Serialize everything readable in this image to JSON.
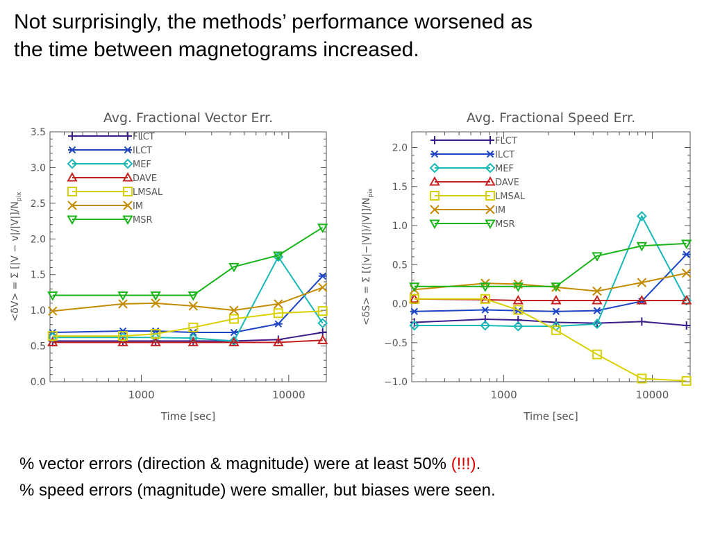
{
  "heading": {
    "line1": "Not surprisingly, the methods’ performance worsened as",
    "line2": "the time between magnetograms increased."
  },
  "footer": {
    "line1_text": "% vector errors (direction & magnitude) were at least 50% ",
    "line1_emph": "(!!!)",
    "line1_end": ".",
    "line2": "% speed errors (magnitude) were smaller, but biases were seen."
  },
  "colors": {
    "FLCT": "#3a1d8a",
    "ILCT": "#1c44c4",
    "MEF": "#19b8b8",
    "DAVE": "#c42020",
    "LMSAL": "#d8d000",
    "IM": "#c48a00",
    "MSR": "#18b418",
    "emphasis": "#e00000"
  },
  "chart_data": [
    {
      "type": "line",
      "title": "Avg. Fractional Vector Err.",
      "xlabel": "Time [sec]",
      "ylabel": "<δV> = Σ [|V − v|/|V|]/N",
      "ylabel_sub": "pix",
      "xscale": "log",
      "xlim": [
        240,
        18000
      ],
      "ylim": [
        0.0,
        3.5
      ],
      "xticks": [
        1000,
        10000
      ],
      "xticklabels": [
        "1000",
        "10000"
      ],
      "yticks": [
        0.0,
        0.5,
        1.0,
        1.5,
        2.0,
        2.5,
        3.0,
        3.5
      ],
      "yticklabels": [
        "0.0",
        "0.5",
        "1.0",
        "1.5",
        "2.0",
        "2.5",
        "3.0",
        "3.5"
      ],
      "grid": false,
      "legend_position": "top-left",
      "x": [
        250,
        750,
        1250,
        2250,
        4250,
        8500,
        17000
      ],
      "series": [
        {
          "name": "FLCT",
          "marker": "plus",
          "values": [
            0.57,
            0.57,
            0.57,
            0.57,
            0.57,
            0.59,
            0.69
          ]
        },
        {
          "name": "ILCT",
          "marker": "asterisk",
          "values": [
            0.69,
            0.71,
            0.71,
            0.69,
            0.69,
            0.81,
            1.48
          ]
        },
        {
          "name": "MEF",
          "marker": "diamond",
          "values": [
            0.62,
            0.62,
            0.62,
            0.61,
            0.57,
            1.75,
            0.82
          ]
        },
        {
          "name": "DAVE",
          "marker": "triangle-up",
          "values": [
            0.55,
            0.55,
            0.55,
            0.55,
            0.55,
            0.55,
            0.58
          ]
        },
        {
          "name": "LMSAL",
          "marker": "square",
          "values": [
            0.64,
            0.64,
            0.67,
            0.76,
            0.88,
            0.96,
            0.99
          ]
        },
        {
          "name": "IM",
          "marker": "x",
          "values": [
            0.99,
            1.09,
            1.1,
            1.06,
            1.0,
            1.09,
            1.32
          ]
        },
        {
          "name": "MSR",
          "marker": "triangle-down",
          "values": [
            1.21,
            1.21,
            1.21,
            1.21,
            1.61,
            1.77,
            2.16
          ]
        }
      ]
    },
    {
      "type": "line",
      "title": "Avg. Fractional Speed Err.",
      "xlabel": "Time [sec]",
      "ylabel": "<δS> = Σ [(|v|−|V|)/|V|]/N",
      "ylabel_sub": "pix",
      "xscale": "log",
      "xlim": [
        240,
        18000
      ],
      "ylim": [
        -1.0,
        2.2
      ],
      "xticks": [
        1000,
        10000
      ],
      "xticklabels": [
        "1000",
        "10000"
      ],
      "yticks": [
        -1.0,
        -0.5,
        0.0,
        0.5,
        1.0,
        1.5,
        2.0
      ],
      "yticklabels": [
        "−1.0",
        "−0.5",
        "0.0",
        "0.5",
        "1.0",
        "1.5",
        "2.0"
      ],
      "grid": false,
      "legend_position": "top-left",
      "x": [
        250,
        750,
        1250,
        2250,
        4250,
        8500,
        17000
      ],
      "series": [
        {
          "name": "FLCT",
          "marker": "plus",
          "values": [
            -0.24,
            -0.2,
            -0.21,
            -0.24,
            -0.25,
            -0.23,
            -0.28
          ]
        },
        {
          "name": "ILCT",
          "marker": "asterisk",
          "values": [
            -0.1,
            -0.08,
            -0.09,
            -0.1,
            -0.09,
            0.03,
            0.63
          ]
        },
        {
          "name": "MEF",
          "marker": "diamond",
          "values": [
            -0.28,
            -0.28,
            -0.29,
            -0.29,
            -0.26,
            1.12,
            0.04
          ]
        },
        {
          "name": "DAVE",
          "marker": "triangle-up",
          "values": [
            0.06,
            0.05,
            0.04,
            0.04,
            0.04,
            0.04,
            0.04
          ]
        },
        {
          "name": "LMSAL",
          "marker": "square",
          "values": [
            0.06,
            0.06,
            -0.08,
            -0.34,
            -0.65,
            -0.96,
            -0.99
          ]
        },
        {
          "name": "IM",
          "marker": "x",
          "values": [
            0.18,
            0.26,
            0.25,
            0.21,
            0.16,
            0.27,
            0.39
          ]
        },
        {
          "name": "MSR",
          "marker": "triangle-down",
          "values": [
            0.22,
            0.22,
            0.22,
            0.22,
            0.61,
            0.74,
            0.77
          ]
        }
      ]
    }
  ]
}
